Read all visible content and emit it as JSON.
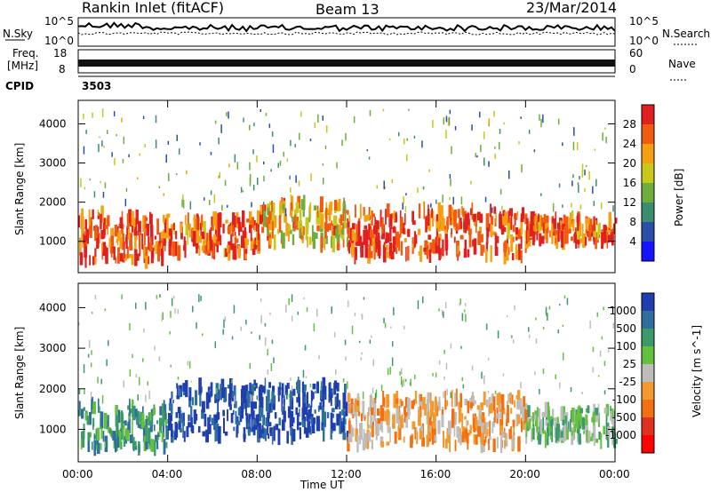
{
  "header": {
    "station": "Rankin Inlet (fitACF)",
    "beam": "Beam 13",
    "date": "23/Mar/2014"
  },
  "noise_panel": {
    "left_label": "N.Sky",
    "right_label": "N.Search",
    "left_ticks": [
      "10^5",
      "10^0"
    ],
    "right_ticks": [
      "10^5",
      "10^0"
    ]
  },
  "freq_panel": {
    "left_label_1": "Freq.",
    "left_label_2": "[MHz]",
    "right_label": "Nave",
    "left_ticks": [
      "18",
      "8"
    ],
    "right_ticks": [
      "60",
      "0"
    ]
  },
  "cpid": {
    "label": "CPID",
    "value": "3503"
  },
  "chart_data": [
    {
      "type": "heatmap",
      "title": "",
      "ylabel": "Slant Range [km]",
      "ylim": [
        200,
        4600
      ],
      "yticks": [
        1000,
        2000,
        3000,
        4000
      ],
      "colorbar_label": "Power [dB]",
      "colorbar_ticks": [
        "28",
        "24",
        "20",
        "16",
        "12",
        "8",
        "4"
      ],
      "colors": [
        "#e02020",
        "#f25a10",
        "#f5a010",
        "#c8c818",
        "#6fae3c",
        "#3a8e6e",
        "#2a4fa8",
        "#1515ff"
      ],
      "echo_bands": [
        {
          "t0": 0.0,
          "t1": 4.0,
          "r0": 500,
          "r1": 1700,
          "level": 0.85
        },
        {
          "t0": 4.0,
          "t1": 8.0,
          "r0": 700,
          "r1": 1600,
          "level": 0.8
        },
        {
          "t0": 8.0,
          "t1": 12.0,
          "r0": 900,
          "r1": 2000,
          "level": 0.6
        },
        {
          "t0": 12.0,
          "t1": 20.0,
          "r0": 600,
          "r1": 1800,
          "level": 0.85
        },
        {
          "t0": 20.0,
          "t1": 24.0,
          "r0": 1000,
          "r1": 1600,
          "level": 0.8
        }
      ]
    },
    {
      "type": "heatmap",
      "title": "",
      "ylabel": "Slant Range [km]",
      "xlabel": "Time UT",
      "xticks": [
        "00:00",
        "04:00",
        "08:00",
        "12:00",
        "16:00",
        "20:00",
        "00:00"
      ],
      "ylim": [
        200,
        4600
      ],
      "yticks": [
        1000,
        2000,
        3000,
        4000
      ],
      "colorbar_label": "Velocity [m s^-1]",
      "colorbar_ticks": [
        "1000",
        "500",
        "100",
        "25",
        "-25",
        "-100",
        "-500",
        "-1000"
      ],
      "colors": [
        "#1f3fb0",
        "#2f6fa0",
        "#3a9a6a",
        "#66c040",
        "#bdbdbd",
        "#f29a30",
        "#f27010",
        "#e03020",
        "#ff0000"
      ],
      "echo_bands": [
        {
          "t0": 0.0,
          "t1": 4.0,
          "r0": 500,
          "r1": 1600,
          "vel": "low"
        },
        {
          "t0": 4.0,
          "t1": 12.0,
          "r0": 800,
          "r1": 2100,
          "vel": "positive"
        },
        {
          "t0": 12.0,
          "t1": 20.0,
          "r0": 600,
          "r1": 1800,
          "vel": "negative"
        },
        {
          "t0": 20.0,
          "t1": 24.0,
          "r0": 700,
          "r1": 1500,
          "vel": "mixed"
        }
      ]
    }
  ]
}
